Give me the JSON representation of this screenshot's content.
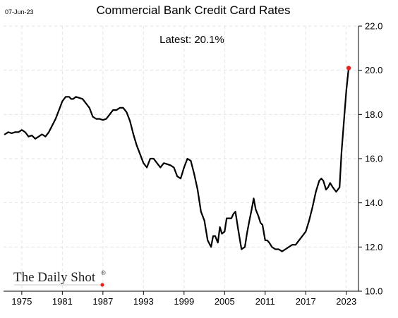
{
  "header": {
    "date": "07-Jun-23",
    "brand": "The Daily Shot",
    "brand_mark": "®"
  },
  "chart_data": {
    "type": "line",
    "title": "Commercial Bank Credit Card Rates",
    "annotation": "Latest:  20.1%",
    "xlabel": "",
    "ylabel": "",
    "xlim": [
      1972.3,
      2024.8
    ],
    "ylim": [
      10.0,
      22.0
    ],
    "x_ticks": [
      1975,
      1981,
      1987,
      1993,
      1999,
      2005,
      2011,
      2017,
      2023
    ],
    "x_tick_labels": [
      "1975",
      "1981",
      "1987",
      "1993",
      "1999",
      "2005",
      "2011",
      "2017",
      "2023"
    ],
    "y_ticks": [
      10,
      12,
      14,
      16,
      18,
      20,
      22
    ],
    "y_tick_labels": [
      "10.0",
      "12.0",
      "14.0",
      "16.0",
      "18.0",
      "20.0",
      "22.0"
    ],
    "y_axis_position": "right",
    "grid": true,
    "line_color": "#000000",
    "marker_color": "#e8231e",
    "series": [
      {
        "values_x": [
          1972.5,
          1973.0,
          1973.5,
          1974.0,
          1974.5,
          1975.0,
          1975.5,
          1976.0,
          1976.5,
          1977.0,
          1977.5,
          1978.0,
          1978.5,
          1979.0,
          1979.5,
          1980.0,
          1980.5,
          1981.0,
          1981.5,
          1982.0,
          1982.3,
          1982.6,
          1983.0,
          1983.5,
          1984.0,
          1984.5,
          1985.0,
          1985.5,
          1986.0,
          1986.5,
          1987.0,
          1987.5,
          1988.0,
          1988.5,
          1989.0,
          1989.5,
          1990.0,
          1990.5,
          1991.0,
          1991.5,
          1992.0,
          1992.5,
          1993.0,
          1993.5,
          1994.0,
          1994.5,
          1995.0,
          1995.5,
          1996.0,
          1996.5,
          1997.0,
          1997.5,
          1998.0,
          1998.5,
          1999.0,
          1999.5,
          2000.0,
          2000.5,
          2001.0,
          2001.5,
          2002.0,
          2002.5,
          2003.0,
          2003.3,
          2003.6,
          2004.0,
          2004.3,
          2004.6,
          2005.0,
          2005.3,
          2005.6,
          2006.0,
          2006.3,
          2006.6,
          2007.0,
          2007.5,
          2008.0,
          2008.3,
          2008.6,
          2009.0,
          2009.3,
          2009.6,
          2010.0,
          2010.3,
          2010.6,
          2011.0,
          2011.3,
          2011.6,
          2012.0,
          2012.5,
          2013.0,
          2013.5,
          2014.0,
          2014.5,
          2015.0,
          2015.5,
          2016.0,
          2016.5,
          2017.0,
          2017.5,
          2018.0,
          2018.5,
          2019.0,
          2019.3,
          2019.6,
          2020.0,
          2020.3,
          2020.6,
          2021.0,
          2021.5,
          2022.0,
          2022.3,
          2022.6,
          2023.0,
          2023.35
        ],
        "values": [
          17.1,
          17.2,
          17.15,
          17.2,
          17.2,
          17.3,
          17.2,
          17.0,
          17.05,
          16.9,
          17.0,
          17.1,
          17.0,
          17.2,
          17.5,
          17.8,
          18.2,
          18.6,
          18.8,
          18.8,
          18.7,
          18.7,
          18.8,
          18.75,
          18.7,
          18.5,
          18.3,
          17.9,
          17.8,
          17.8,
          17.75,
          17.8,
          18.0,
          18.2,
          18.2,
          18.3,
          18.3,
          18.1,
          17.7,
          17.1,
          16.6,
          16.2,
          15.8,
          15.6,
          16.0,
          16.0,
          15.8,
          15.6,
          15.8,
          15.75,
          15.7,
          15.6,
          15.2,
          15.1,
          15.6,
          16.0,
          15.9,
          15.3,
          14.6,
          13.6,
          13.2,
          12.3,
          12.0,
          12.5,
          12.5,
          12.2,
          12.9,
          12.6,
          12.7,
          13.3,
          13.3,
          13.3,
          13.5,
          13.6,
          12.8,
          11.9,
          12.0,
          12.6,
          13.1,
          13.7,
          14.2,
          13.7,
          13.4,
          13.1,
          13.0,
          12.3,
          12.3,
          12.2,
          12.0,
          11.9,
          11.9,
          11.8,
          11.9,
          12.0,
          12.1,
          12.1,
          12.3,
          12.5,
          12.7,
          13.2,
          13.8,
          14.5,
          15.0,
          15.1,
          15.0,
          14.6,
          14.7,
          14.9,
          14.7,
          14.5,
          14.7,
          16.3,
          17.5,
          19.1,
          20.1
        ]
      }
    ],
    "latest": {
      "x": 2023.35,
      "value": 20.1
    }
  }
}
